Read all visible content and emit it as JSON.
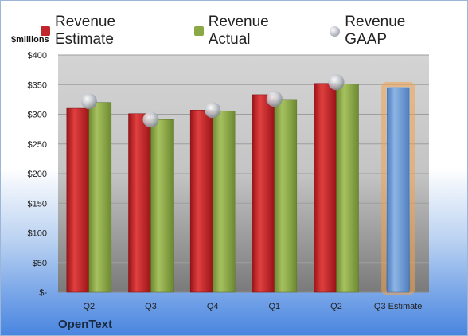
{
  "company": "OpenText",
  "colors": {
    "estimate": "#c0262b",
    "actual": "#8aa946",
    "gaap": "#b8bcc4",
    "forecast": "#6d9bd6",
    "forecast_glow": "#f2a24b"
  },
  "legend": {
    "estimate": "Revenue Estimate",
    "actual": "Revenue Actual",
    "gaap": "Revenue GAAP"
  },
  "chart_data": {
    "type": "bar",
    "ylabel": "$millions",
    "ylim": [
      0,
      400
    ],
    "ytick_step": 50,
    "ytick_labels": [
      "$-",
      "$50",
      "$100",
      "$150",
      "$200",
      "$250",
      "$300",
      "$350",
      "$400"
    ],
    "categories": [
      "Q2",
      "Q3",
      "Q4",
      "Q1",
      "Q2",
      "Q3 Estimate"
    ],
    "series": [
      {
        "name": "Revenue Estimate",
        "values": [
          310,
          301,
          307,
          333,
          352,
          null
        ]
      },
      {
        "name": "Revenue Actual",
        "values": [
          320,
          291,
          305,
          325,
          351,
          null
        ]
      },
      {
        "name": "Revenue GAAP",
        "values": [
          322,
          291,
          307,
          326,
          354,
          null
        ]
      }
    ],
    "forecast": {
      "category": "Q3 Estimate",
      "value": 345
    },
    "grid": true,
    "legend_position": "top"
  }
}
